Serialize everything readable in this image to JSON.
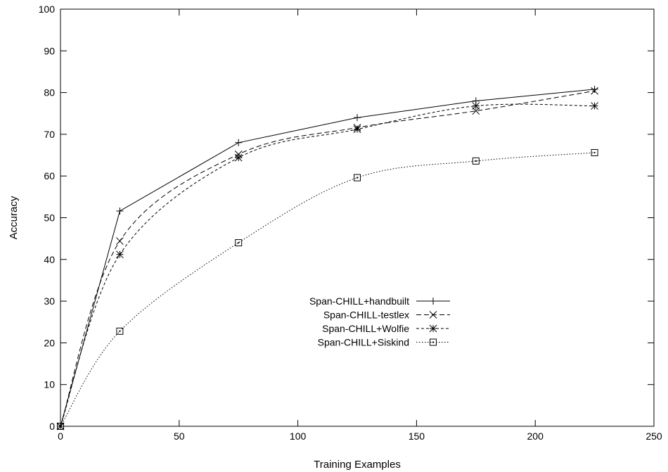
{
  "chart_data": {
    "type": "line",
    "xlabel": "Training Examples",
    "ylabel": "Accuracy",
    "xlim": [
      0,
      250
    ],
    "ylim": [
      0,
      100
    ],
    "xticks": [
      0,
      50,
      100,
      150,
      200,
      250
    ],
    "yticks": [
      0,
      10,
      20,
      30,
      40,
      50,
      60,
      70,
      80,
      90,
      100
    ],
    "grid": false,
    "legend_position": "center-right",
    "series": [
      {
        "name": "Span-CHILL+handbuilt",
        "marker": "plus",
        "dash": "solid",
        "x": [
          0,
          25,
          75,
          125,
          175,
          225
        ],
        "y": [
          0,
          51.6,
          68.0,
          74.0,
          78.0,
          80.8
        ]
      },
      {
        "name": "Span-CHILL-testlex",
        "marker": "cross",
        "dash": "dashed",
        "x": [
          0,
          25,
          75,
          125,
          175,
          225
        ],
        "y": [
          0,
          44.4,
          65.2,
          71.6,
          75.6,
          80.4
        ]
      },
      {
        "name": "Span-CHILL+Wolfie",
        "marker": "star",
        "dash": "short-dashed",
        "x": [
          0,
          25,
          75,
          125,
          175,
          225
        ],
        "y": [
          0,
          41.2,
          64.4,
          71.2,
          76.8,
          76.8
        ]
      },
      {
        "name": "Span-CHILL+Siskind",
        "marker": "square",
        "dash": "dotted",
        "x": [
          0,
          25,
          75,
          125,
          175,
          225
        ],
        "y": [
          0,
          22.8,
          44.0,
          59.6,
          63.6,
          65.6
        ]
      }
    ]
  }
}
